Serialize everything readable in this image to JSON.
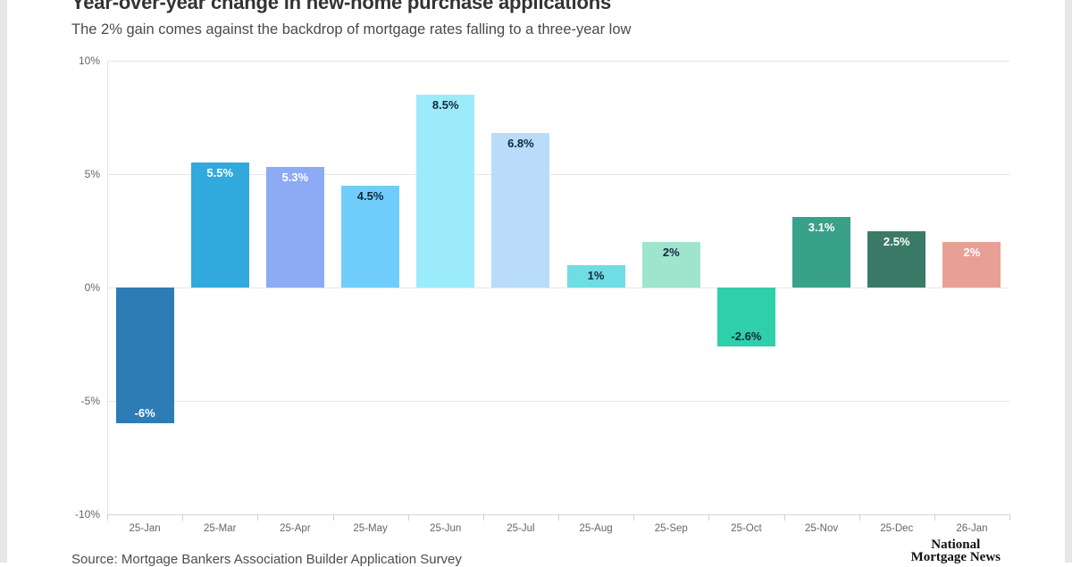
{
  "header": {
    "title": "Year-over-year change in new-home purchase applications",
    "subtitle": "The 2% gain comes against the backdrop of mortgage rates falling to a three-year low"
  },
  "chart_data": {
    "type": "bar",
    "title": "Year-over-year change in new-home purchase applications",
    "subtitle": "The 2% gain comes against the backdrop of mortgage rates falling to a three-year low",
    "categories": [
      "25-Jan",
      "25-Mar",
      "25-Apr",
      "25-May",
      "25-Jun",
      "25-Jul",
      "25-Aug",
      "25-Sep",
      "25-Oct",
      "25-Nov",
      "25-Dec",
      "26-Jan"
    ],
    "values": [
      -6,
      5.5,
      5.3,
      4.5,
      8.5,
      6.8,
      1,
      2,
      -2.6,
      3.1,
      2.5,
      2
    ],
    "labels": [
      "-6%",
      "5.5%",
      "5.3%",
      "4.5%",
      "8.5%",
      "6.8%",
      "1%",
      "2%",
      "-2.6%",
      "3.1%",
      "2.5%",
      "2%"
    ],
    "bar_colors": [
      "#2e7cb5",
      "#31a9dc",
      "#8cabf4",
      "#70cdfb",
      "#9cebfb",
      "#b8dcfa",
      "#70dce4",
      "#9fe5cd",
      "#2ecfa9",
      "#39a089",
      "#3b7a67",
      "#e8a096"
    ],
    "label_colors": [
      "#ffffff",
      "#ffffff",
      "#ffffff",
      "#12293a",
      "#12293a",
      "#12293a",
      "#12293a",
      "#12293a",
      "#12293a",
      "#ffffff",
      "#ffffff",
      "#ffffff"
    ],
    "xlabel": "",
    "ylabel": "",
    "ylim": [
      -10,
      10
    ],
    "yticks": [
      "10%",
      "5%",
      "0%",
      "-5%",
      "-10%"
    ],
    "grid": true,
    "legend_position": "none"
  },
  "footer": {
    "source": "Source: Mortgage Bankers Association Builder Application Survey",
    "logo_line1": "National",
    "logo_line2": "Mortgage News"
  }
}
